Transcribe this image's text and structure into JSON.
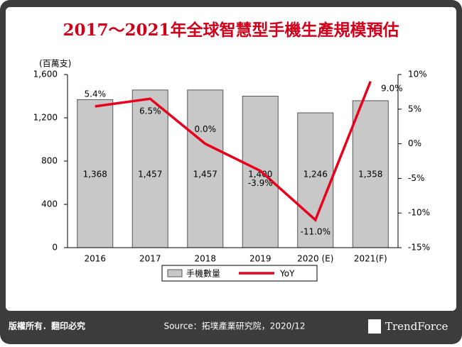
{
  "chart_data": {
    "type": "bar_line",
    "title": "2017～2021年全球智慧型手機生產規模預估",
    "y_label": "(百萬支)",
    "categories": [
      "2016",
      "2017",
      "2018",
      "2019",
      "2020 (E)",
      "2021(F)"
    ],
    "series": [
      {
        "name": "手機數量",
        "type": "bar",
        "color": "#c8c8c8",
        "values": [
          1368,
          1457,
          1457,
          1400,
          1246,
          1358
        ],
        "value_labels": [
          "1,368",
          "1,457",
          "1,457",
          "1,400",
          "1,246",
          "1,358"
        ]
      },
      {
        "name": "YoY",
        "type": "line",
        "axis": "y2",
        "color": "#e8001c",
        "values": [
          5.4,
          6.5,
          0.0,
          -3.9,
          -11.0,
          9.0
        ],
        "value_labels": [
          "5.4%",
          "6.5%",
          "0.0%",
          "-3.9%",
          "-11.0%",
          "9.0%"
        ]
      }
    ],
    "ylim": [
      0,
      1600
    ],
    "yticks": [
      0,
      400,
      800,
      {
        "value": 1200,
        "label": "1,200"
      },
      {
        "value": 1600,
        "label": "1,600"
      }
    ],
    "y2lim": [
      -15,
      10
    ],
    "y2ticks": [
      {
        "value": -15,
        "label": "-15%"
      },
      {
        "value": -10,
        "label": "-10%"
      },
      {
        "value": -5,
        "label": "-5%"
      },
      {
        "value": 0,
        "label": "0%"
      },
      {
        "value": 5,
        "label": "5%"
      },
      {
        "value": 10,
        "label": "10%"
      }
    ],
    "legend": "bottom"
  },
  "footer": {
    "copyright": "版權所有．翻印必究",
    "source": "Source：拓墣產業研究院，2020/12",
    "logo": "TrendForce"
  }
}
